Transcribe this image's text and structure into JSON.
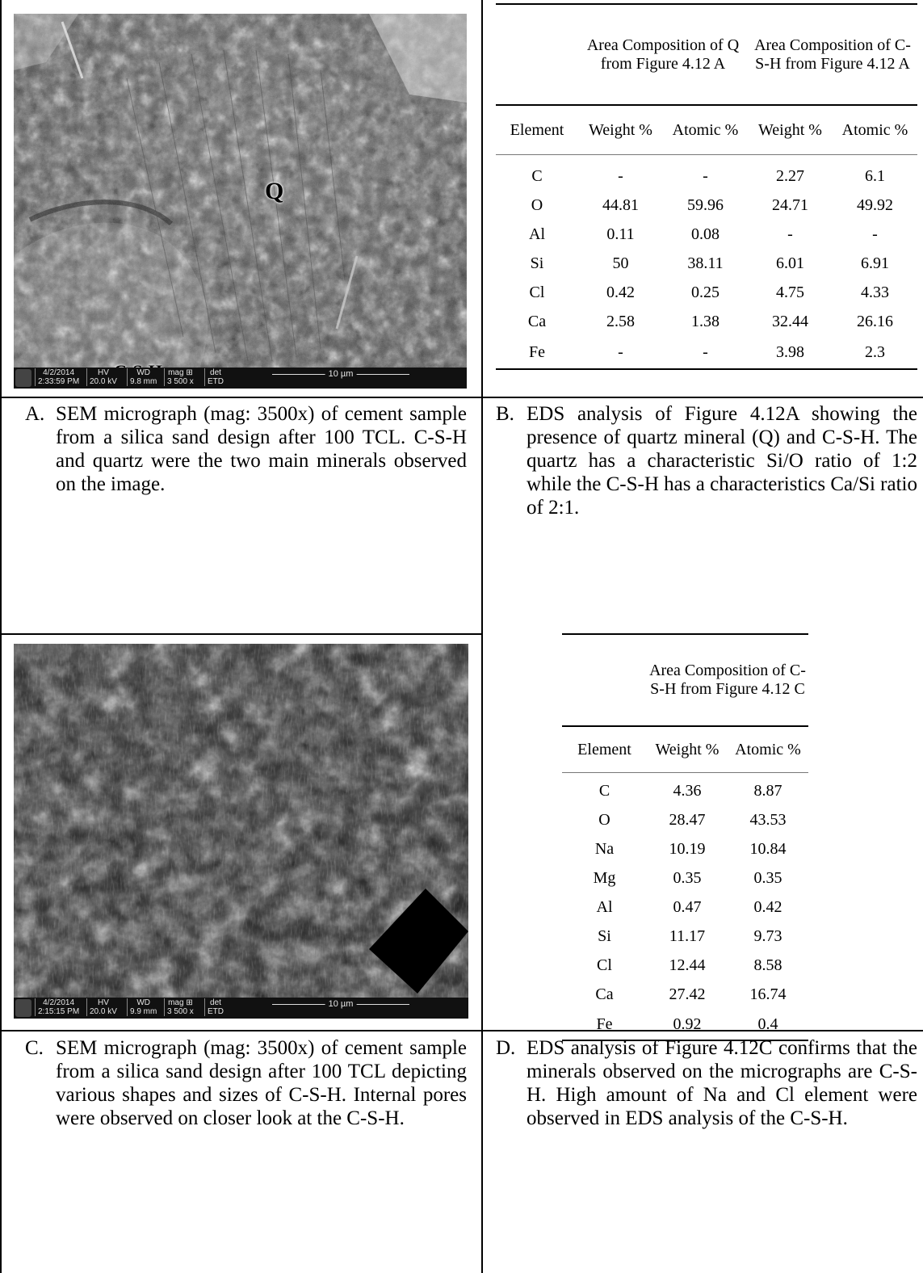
{
  "panel_a": {
    "image_labels": {
      "quartz": "Q",
      "csh": "C-S-H"
    },
    "databar": {
      "date": "4/2/2014",
      "time": "2:33:59 PM",
      "hv_label": "HV",
      "hv": "20.0 kV",
      "wd_label": "WD",
      "wd": "9.8 mm",
      "mag_label": "mag ⊞",
      "mag": "3 500 x",
      "det_label": "det",
      "det": "ETD",
      "scale": "10 µm"
    }
  },
  "table_b": {
    "group_headers": [
      "Area Composition of Q from Figure 4.12 A",
      "Area Composition of C-S-H from Figure 4.12 A"
    ],
    "col_headers": [
      "Element",
      "Weight %",
      "Atomic %",
      "Weight %",
      "Atomic %"
    ],
    "rows": [
      [
        "C",
        "-",
        "-",
        "2.27",
        "6.1"
      ],
      [
        "O",
        "44.81",
        "59.96",
        "24.71",
        "49.92"
      ],
      [
        "Al",
        "0.11",
        "0.08",
        "-",
        "-"
      ],
      [
        "Si",
        "50",
        "38.11",
        "6.01",
        "6.91"
      ],
      [
        "Cl",
        "0.42",
        "0.25",
        "4.75",
        "4.33"
      ],
      [
        "Ca",
        "2.58",
        "1.38",
        "32.44",
        "26.16"
      ],
      [
        "Fe",
        "-",
        "-",
        "3.98",
        "2.3"
      ]
    ]
  },
  "captions": {
    "a": {
      "letter": "A.",
      "text": "SEM micrograph (mag: 3500x) of cement sample from a silica sand design after 100 TCL. C-S-H and quartz were the two main minerals observed on the image."
    },
    "b": {
      "letter": "B.",
      "text": "EDS analysis of Figure 4.12A showing the presence of quartz mineral (Q) and C-S-H. The quartz has a characteristic Si/O ratio of 1:2 while the C-S-H has a characteristics Ca/Si ratio of 2:1."
    },
    "c": {
      "letter": "C.",
      "text": "SEM micrograph (mag: 3500x) of cement sample from a silica sand design after 100 TCL depicting various shapes and sizes of C-S-H. Internal pores were observed on closer look at the C-S-H."
    },
    "d": {
      "letter": "D.",
      "text": "EDS analysis of Figure 4.12C confirms that the minerals observed on the micrographs are C-S-H. High amount of Na and Cl element were observed in EDS analysis of the C-S-H."
    }
  },
  "panel_c": {
    "databar": {
      "date": "4/2/2014",
      "time": "2:15:15 PM",
      "hv_label": "HV",
      "hv": "20.0 kV",
      "wd_label": "WD",
      "wd": "9.9 mm",
      "mag_label": "mag ⊞",
      "mag": "3 500 x",
      "det_label": "det",
      "det": "ETD",
      "scale": "10 µm"
    }
  },
  "table_d": {
    "group_header": "Area Composition of C-S-H from Figure 4.12 C",
    "col_headers": [
      "Element",
      "Weight %",
      "Atomic %"
    ],
    "rows": [
      [
        "C",
        "4.36",
        "8.87"
      ],
      [
        "O",
        "28.47",
        "43.53"
      ],
      [
        "Na",
        "10.19",
        "10.84"
      ],
      [
        "Mg",
        "0.35",
        "0.35"
      ],
      [
        "Al",
        "0.47",
        "0.42"
      ],
      [
        "Si",
        "11.17",
        "9.73"
      ],
      [
        "Cl",
        "12.44",
        "8.58"
      ],
      [
        "Ca",
        "27.42",
        "16.74"
      ],
      [
        "Fe",
        "0.92",
        "0.4"
      ]
    ]
  }
}
